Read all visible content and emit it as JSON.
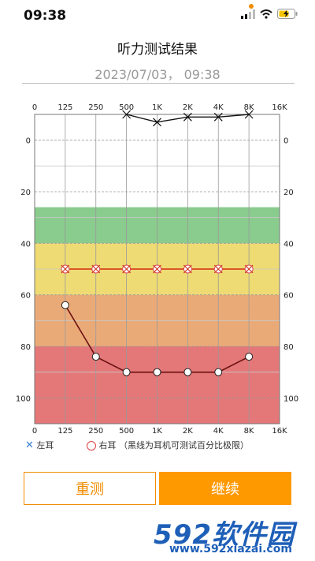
{
  "status_bar": {
    "time": "09:38"
  },
  "header": {
    "title": "听力测试结果",
    "datetime": "2023/07/03， 09:38"
  },
  "chart_data": {
    "type": "line",
    "x_categories": [
      "0",
      "125",
      "250",
      "500",
      "1K",
      "2K",
      "4K",
      "8K",
      "16K"
    ],
    "y_ticks": [
      0,
      20,
      40,
      60,
      80,
      100
    ],
    "ylim": [
      -10,
      110
    ],
    "bands": [
      {
        "from": 26,
        "to": 40,
        "color": "#8acb8e"
      },
      {
        "from": 40,
        "to": 60,
        "color": "#eedb73"
      },
      {
        "from": 60,
        "to": 80,
        "color": "#eaaa78"
      },
      {
        "from": 80,
        "to": 110,
        "color": "#e47778"
      }
    ],
    "series": [
      {
        "name": "左耳",
        "marker": "x",
        "color": "#d42a12",
        "x": [
          "125",
          "250",
          "500",
          "1K",
          "2K",
          "4K",
          "8K"
        ],
        "y": [
          50,
          50,
          50,
          50,
          50,
          50,
          50
        ]
      },
      {
        "name": "右耳",
        "marker": "o",
        "color": "#6a1010",
        "x": [
          "125",
          "250",
          "500",
          "1K",
          "2K",
          "4K",
          "8K"
        ],
        "y": [
          64,
          84,
          90,
          90,
          90,
          90,
          84
        ]
      },
      {
        "name": "limit",
        "marker": "none",
        "color": "#111111",
        "x": [
          "500",
          "1K",
          "2K",
          "4K",
          "8K"
        ],
        "y": [
          -10,
          -7,
          -9,
          -9,
          -10
        ]
      }
    ]
  },
  "legend": {
    "left_ear": "左耳",
    "right_ear": "右耳",
    "note": "（黑线为耳机可测试百分比极限）"
  },
  "buttons": {
    "retest": "重测",
    "continue": "继续"
  },
  "watermark": {
    "logo": "592软件园",
    "url": "www.592xiazai.com"
  },
  "colors": {
    "accent": "#ff9900",
    "accent_border": "#f08c00"
  }
}
